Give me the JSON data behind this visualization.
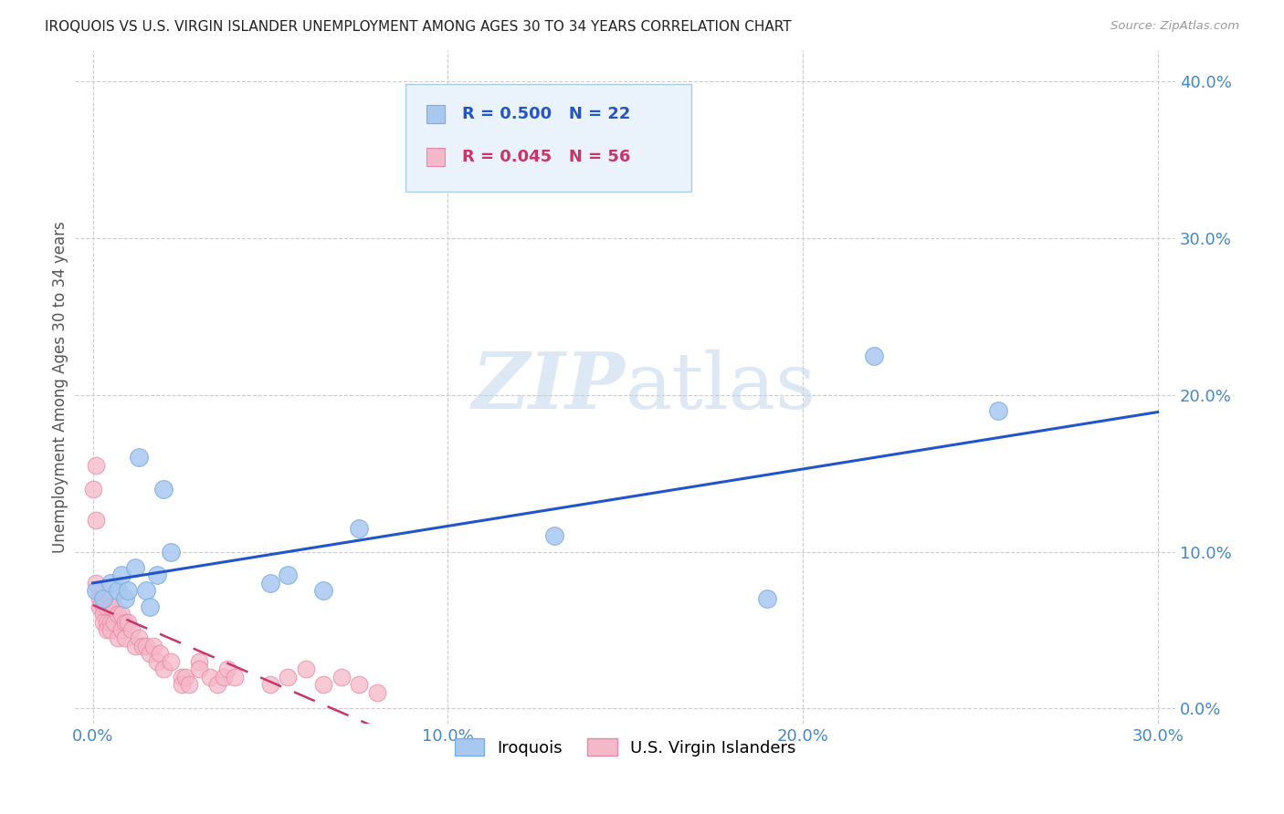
{
  "title": "IROQUOIS VS U.S. VIRGIN ISLANDER UNEMPLOYMENT AMONG AGES 30 TO 34 YEARS CORRELATION CHART",
  "source": "Source: ZipAtlas.com",
  "ylabel": "Unemployment Among Ages 30 to 34 years",
  "xlabel_ticks": [
    "0.0%",
    "10.0%",
    "20.0%",
    "30.0%"
  ],
  "xlabel_vals": [
    0.0,
    0.1,
    0.2,
    0.3
  ],
  "ylabel_ticks": [
    "0.0%",
    "10.0%",
    "20.0%",
    "30.0%",
    "40.0%"
  ],
  "ylabel_vals": [
    0.0,
    0.1,
    0.2,
    0.3,
    0.4
  ],
  "xlim": [
    -0.005,
    0.305
  ],
  "ylim": [
    -0.01,
    0.42
  ],
  "iroquois_color": "#a8c8f0",
  "iroquois_edge_color": "#7aaede",
  "iroquois_line_color": "#2255cc",
  "vi_color": "#f5b8c8",
  "vi_edge_color": "#e888a8",
  "vi_line_color": "#cc3366",
  "watermark_color": "#dde8f5",
  "iroquois_x": [
    0.001,
    0.003,
    0.005,
    0.007,
    0.008,
    0.009,
    0.01,
    0.012,
    0.013,
    0.015,
    0.016,
    0.018,
    0.02,
    0.022,
    0.05,
    0.055,
    0.065,
    0.075,
    0.13,
    0.19,
    0.22,
    0.255
  ],
  "iroquois_y": [
    0.075,
    0.07,
    0.08,
    0.075,
    0.085,
    0.07,
    0.075,
    0.09,
    0.16,
    0.075,
    0.065,
    0.085,
    0.14,
    0.1,
    0.08,
    0.085,
    0.075,
    0.115,
    0.11,
    0.07,
    0.225,
    0.19
  ],
  "vi_x": [
    0.0,
    0.001,
    0.001,
    0.001,
    0.002,
    0.002,
    0.002,
    0.003,
    0.003,
    0.003,
    0.003,
    0.004,
    0.004,
    0.004,
    0.005,
    0.005,
    0.005,
    0.005,
    0.006,
    0.006,
    0.007,
    0.007,
    0.008,
    0.008,
    0.009,
    0.009,
    0.01,
    0.011,
    0.012,
    0.013,
    0.014,
    0.015,
    0.016,
    0.017,
    0.018,
    0.019,
    0.02,
    0.022,
    0.025,
    0.025,
    0.026,
    0.027,
    0.03,
    0.03,
    0.033,
    0.035,
    0.037,
    0.038,
    0.04,
    0.05,
    0.055,
    0.06,
    0.065,
    0.07,
    0.075,
    0.08
  ],
  "vi_y": [
    0.14,
    0.155,
    0.12,
    0.08,
    0.075,
    0.07,
    0.065,
    0.075,
    0.065,
    0.06,
    0.055,
    0.065,
    0.055,
    0.05,
    0.07,
    0.065,
    0.055,
    0.05,
    0.065,
    0.055,
    0.06,
    0.045,
    0.06,
    0.05,
    0.055,
    0.045,
    0.055,
    0.05,
    0.04,
    0.045,
    0.04,
    0.04,
    0.035,
    0.04,
    0.03,
    0.035,
    0.025,
    0.03,
    0.02,
    0.015,
    0.02,
    0.015,
    0.03,
    0.025,
    0.02,
    0.015,
    0.02,
    0.025,
    0.02,
    0.015,
    0.02,
    0.025,
    0.015,
    0.02,
    0.015,
    0.01
  ],
  "iroquois_R": 0.5,
  "iroquois_N": 22,
  "vi_R": 0.045,
  "vi_N": 56,
  "background_color": "#ffffff",
  "grid_color": "#cccccc",
  "tick_color": "#4488cc",
  "title_color": "#222222",
  "legend_R_color": "#2255cc",
  "legend_vi_R_color": "#cc3366",
  "legend_bg_color": "#eaf2fb",
  "legend_border_color": "#aaccee"
}
